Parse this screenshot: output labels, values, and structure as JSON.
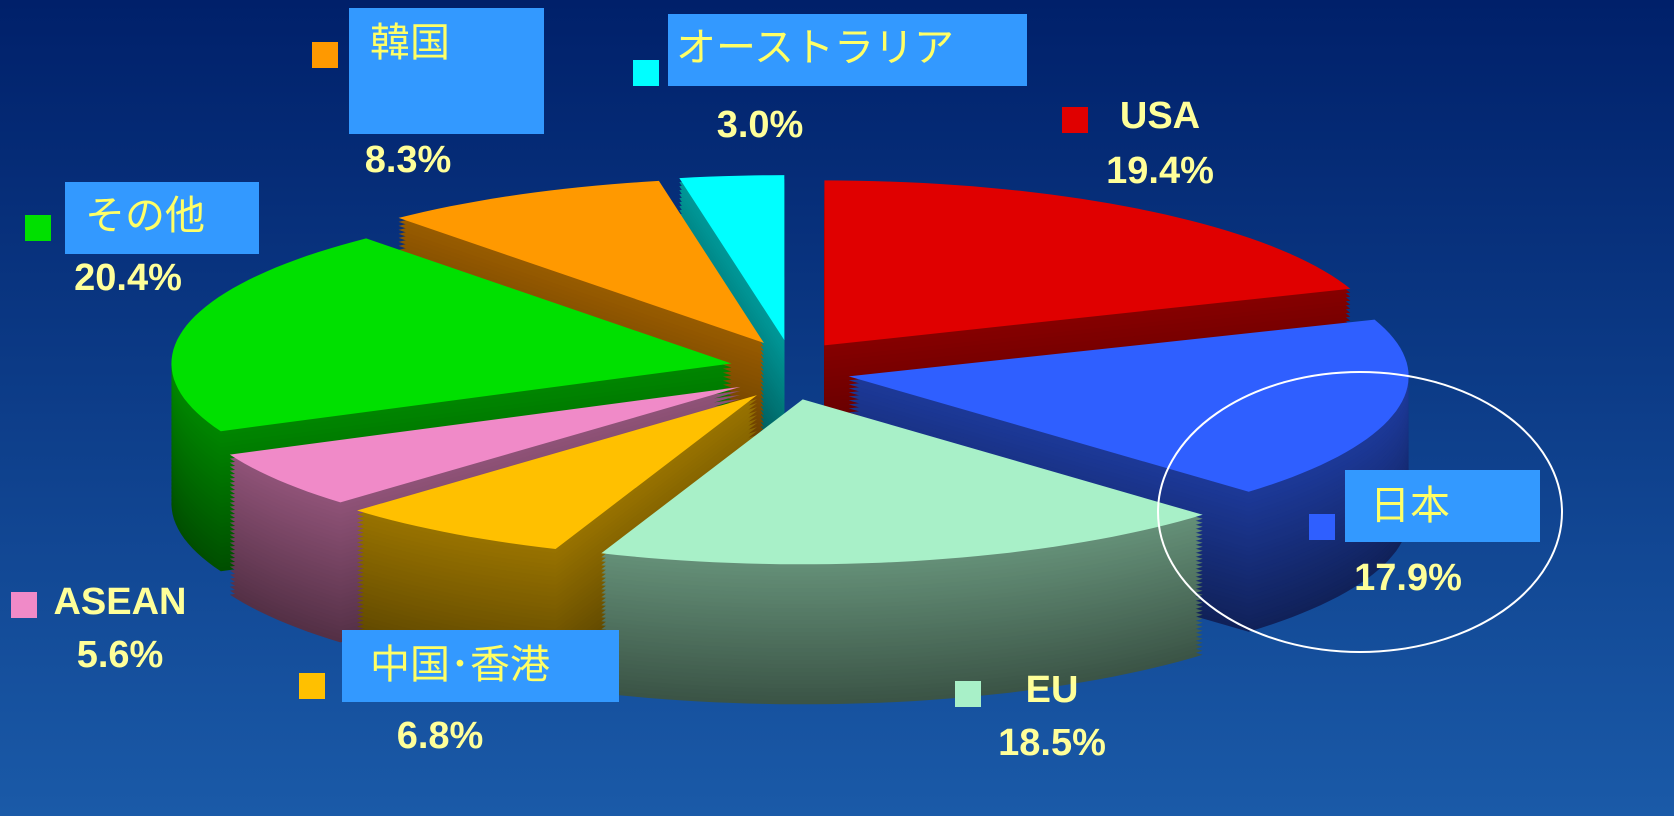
{
  "chart_data": {
    "type": "pie",
    "categories": [
      "USA",
      "日本",
      "EU",
      "中国･香港",
      "ASEAN",
      "その他",
      "韓国",
      "オーストラリア"
    ],
    "values": [
      19.4,
      17.9,
      18.5,
      6.8,
      5.6,
      20.4,
      8.3,
      3.0
    ],
    "value_labels": [
      "19.4%",
      "17.9%",
      "18.5%",
      "6.8%",
      "5.6%",
      "20.4%",
      "8.3%",
      "3.0%"
    ],
    "colors": [
      "#e00000",
      "#2f5fff",
      "#a8f0c8",
      "#ffc000",
      "#f08ac8",
      "#00e000",
      "#ff9900",
      "#00ffff"
    ]
  }
}
